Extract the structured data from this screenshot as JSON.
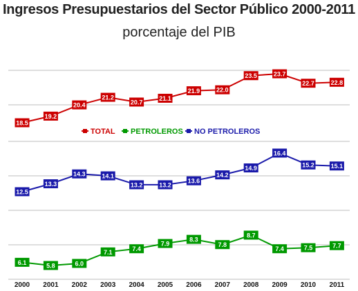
{
  "chart_data": {
    "type": "line",
    "title": "Ingresos Presupuestarios del Sector Público 2000-2011",
    "subtitle": "porcentaje del PIB",
    "categories": [
      "2000",
      "2001",
      "2002",
      "2003",
      "2004",
      "2005",
      "2006",
      "2007",
      "2008",
      "2009",
      "2010",
      "2011"
    ],
    "series": [
      {
        "name": "TOTAL",
        "color": "#cc0000",
        "values": [
          18.5,
          19.2,
          20.4,
          21.2,
          20.7,
          21.1,
          21.9,
          22.0,
          23.5,
          23.7,
          22.7,
          22.8
        ]
      },
      {
        "name": "PETROLEROS",
        "color": "#009900",
        "values": [
          6.1,
          5.8,
          6.0,
          7.1,
          7.4,
          7.9,
          8.3,
          7.8,
          8.7,
          7.4,
          7.5,
          7.7
        ]
      },
      {
        "name": "NO PETROLEROS",
        "color": "#1a1aaa",
        "values": [
          12.5,
          13.3,
          14.3,
          14.1,
          13.2,
          13.2,
          13.6,
          14.2,
          14.9,
          16.4,
          15.2,
          15.1
        ]
      }
    ],
    "legend": {
      "position": "center",
      "items": [
        "TOTAL",
        "PETROLEROS",
        "NO PETROLEROS"
      ]
    },
    "grid": true,
    "xlabel": "",
    "ylabel": ""
  }
}
